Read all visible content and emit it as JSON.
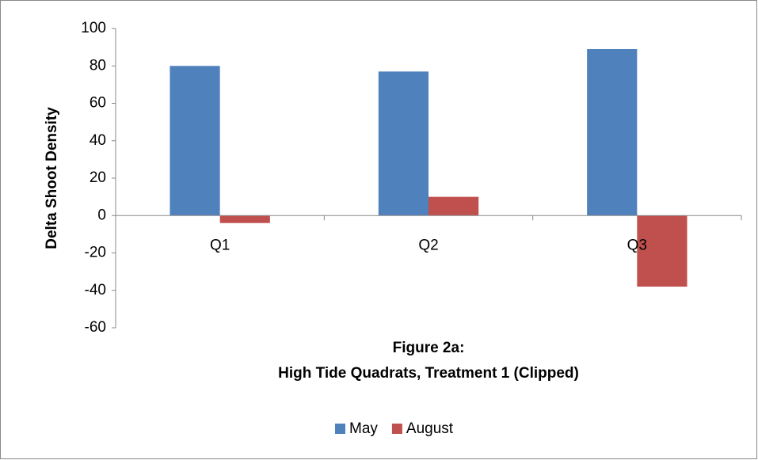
{
  "chart_data": {
    "type": "bar",
    "title": [
      "Figure 2a:",
      "High Tide Quadrats, Treatment 1 (Clipped)"
    ],
    "y_label": "Delta Shoot Density",
    "categories": [
      "Q1",
      "Q2",
      "Q3"
    ],
    "series": [
      {
        "name": "May",
        "color": "#4f81bd",
        "values": [
          80,
          77,
          89
        ]
      },
      {
        "name": "August",
        "color": "#c0504d",
        "values": [
          -4,
          10,
          -38
        ]
      }
    ],
    "ylim": [
      -60,
      100
    ],
    "yticks": [
      -60,
      -40,
      -20,
      0,
      20,
      40,
      60,
      80,
      100
    ],
    "grid": false,
    "legend": "bottom"
  }
}
